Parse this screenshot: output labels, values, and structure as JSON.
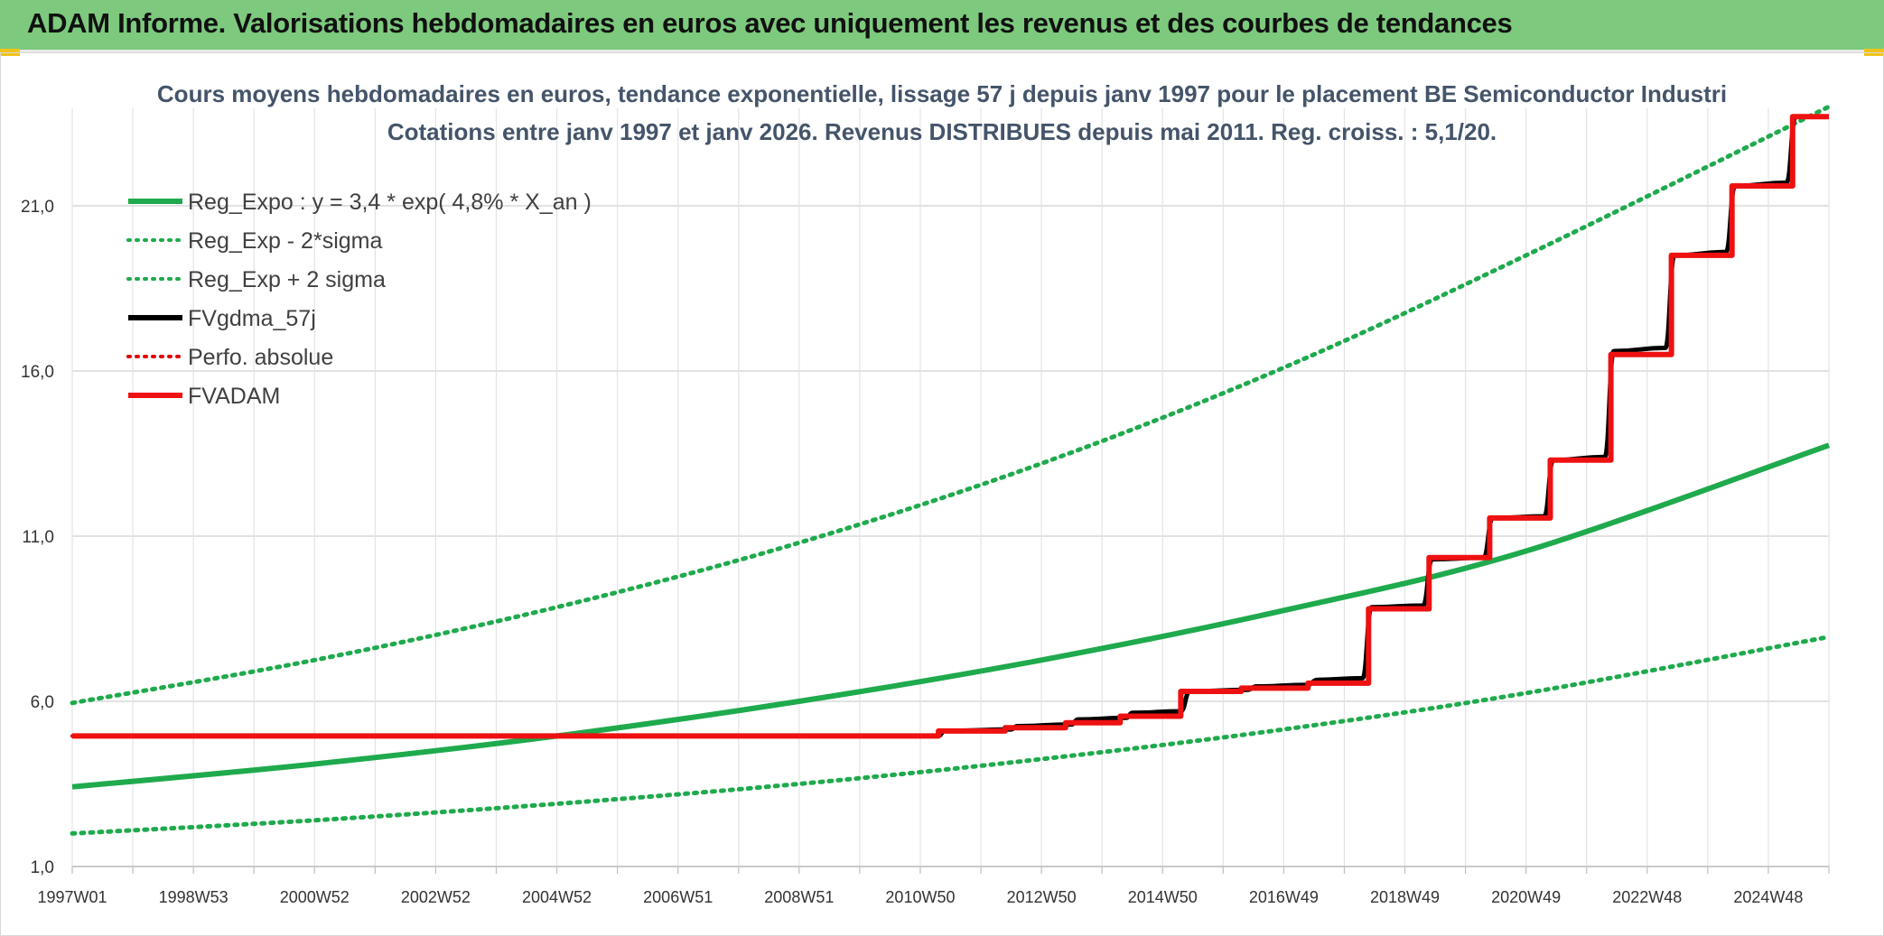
{
  "page": {
    "header_title": "ADAM Informe. Valorisations hebdomadaires en euros avec uniquement les revenus et des courbes de tendances"
  },
  "chart_data": {
    "type": "line",
    "title_line1": "Cours moyens hebdomadaires en euros, tendance exponentielle, lissage 57 j depuis janv 1997 pour le placement BE Semiconductor Industri",
    "title_line2": "Cotations entre janv 1997 et janv 2026. Revenus DISTRIBUES depuis mai 2011. Reg. croiss. : 5,1/20.",
    "x_range": [
      1997.0,
      2026.0
    ],
    "ylim": [
      1.0,
      24.0
    ],
    "y_ticks": [
      {
        "value": 1.0,
        "label": "1,0"
      },
      {
        "value": 6.0,
        "label": "6,0"
      },
      {
        "value": 11.0,
        "label": "11,0"
      },
      {
        "value": 16.0,
        "label": "16,0"
      },
      {
        "value": 21.0,
        "label": "21,0"
      }
    ],
    "x_ticks": [
      {
        "value": 1997.0,
        "label": "1997W01"
      },
      {
        "value": 1999.0,
        "label": "1998W53"
      },
      {
        "value": 2001.0,
        "label": "2000W52"
      },
      {
        "value": 2003.0,
        "label": "2002W52"
      },
      {
        "value": 2005.0,
        "label": "2004W52"
      },
      {
        "value": 2007.0,
        "label": "2006W51"
      },
      {
        "value": 2009.0,
        "label": "2008W51"
      },
      {
        "value": 2011.0,
        "label": "2010W50"
      },
      {
        "value": 2013.0,
        "label": "2012W50"
      },
      {
        "value": 2015.0,
        "label": "2014W50"
      },
      {
        "value": 2017.0,
        "label": "2016W49"
      },
      {
        "value": 2019.0,
        "label": "2018W49"
      },
      {
        "value": 2021.0,
        "label": "2020W49"
      },
      {
        "value": 2023.0,
        "label": "2022W48"
      },
      {
        "value": 2025.0,
        "label": "2024W48"
      }
    ],
    "minor_ticks_per_label": 2,
    "grid": true,
    "legend_position": "top-left",
    "series": [
      {
        "name": "Reg_Expo : y = 3,4 * exp( 4,8% *  X_an )",
        "color": "#1faa4d",
        "style": "solid",
        "width": 6,
        "points": [
          [
            1997.0,
            3.41
          ],
          [
            2001.0,
            4.1
          ],
          [
            2005.0,
            4.95
          ],
          [
            2009.0,
            6.0
          ],
          [
            2013.0,
            7.25
          ],
          [
            2017.0,
            8.75
          ],
          [
            2021.0,
            10.55
          ],
          [
            2026.0,
            13.75
          ]
        ]
      },
      {
        "name": "Reg_Exp - 2*sigma",
        "color": "#1faa4d",
        "style": "dotted",
        "width": 5,
        "points": [
          [
            1997.0,
            2.0
          ],
          [
            2001.0,
            2.4
          ],
          [
            2005.0,
            2.9
          ],
          [
            2009.0,
            3.5
          ],
          [
            2013.0,
            4.25
          ],
          [
            2017.0,
            5.15
          ],
          [
            2021.0,
            6.25
          ],
          [
            2026.0,
            7.95
          ]
        ]
      },
      {
        "name": "Reg_Exp + 2 sigma",
        "color": "#1faa4d",
        "style": "dotted",
        "width": 5,
        "points": [
          [
            1997.0,
            5.95
          ],
          [
            2001.0,
            7.25
          ],
          [
            2005.0,
            8.85
          ],
          [
            2009.0,
            10.8
          ],
          [
            2013.0,
            13.2
          ],
          [
            2017.0,
            16.1
          ],
          [
            2021.0,
            19.5
          ],
          [
            2026.0,
            24.0
          ]
        ]
      },
      {
        "name": "FVgdma_57j",
        "color": "#000000",
        "style": "smooth-step",
        "width": 5,
        "points": [
          [
            1997.0,
            4.95
          ],
          [
            2011.3,
            4.95
          ],
          [
            2011.4,
            5.1
          ],
          [
            2012.5,
            5.15
          ],
          [
            2012.6,
            5.25
          ],
          [
            2013.5,
            5.3
          ],
          [
            2013.6,
            5.45
          ],
          [
            2014.4,
            5.5
          ],
          [
            2014.5,
            5.65
          ],
          [
            2015.3,
            5.7
          ],
          [
            2015.45,
            6.3
          ],
          [
            2016.4,
            6.35
          ],
          [
            2016.55,
            6.45
          ],
          [
            2017.4,
            6.5
          ],
          [
            2017.55,
            6.65
          ],
          [
            2018.3,
            6.7
          ],
          [
            2018.45,
            8.85
          ],
          [
            2019.3,
            8.9
          ],
          [
            2019.45,
            10.3
          ],
          [
            2020.3,
            10.35
          ],
          [
            2020.45,
            11.55
          ],
          [
            2021.3,
            11.6
          ],
          [
            2021.45,
            13.3
          ],
          [
            2022.3,
            13.4
          ],
          [
            2022.45,
            16.6
          ],
          [
            2023.3,
            16.7
          ],
          [
            2023.45,
            19.5
          ],
          [
            2024.3,
            19.6
          ],
          [
            2024.45,
            21.6
          ],
          [
            2025.3,
            21.7
          ],
          [
            2025.45,
            23.7
          ],
          [
            2026.0,
            23.7
          ]
        ]
      },
      {
        "name": "Perfo. absolue",
        "color": "#e00000",
        "style": "dotted",
        "width": 4,
        "points": [
          [
            1997.0,
            4.95
          ],
          [
            2011.3,
            4.95
          ]
        ]
      },
      {
        "name": "FVADAM",
        "color": "#ee1111",
        "style": "step",
        "width": 6,
        "points": [
          [
            1997.0,
            4.95
          ],
          [
            2011.3,
            4.95
          ],
          [
            2011.3,
            5.1
          ],
          [
            2012.4,
            5.1
          ],
          [
            2012.4,
            5.2
          ],
          [
            2013.4,
            5.2
          ],
          [
            2013.4,
            5.35
          ],
          [
            2014.3,
            5.35
          ],
          [
            2014.3,
            5.55
          ],
          [
            2015.3,
            5.55
          ],
          [
            2015.3,
            6.3
          ],
          [
            2016.3,
            6.3
          ],
          [
            2016.3,
            6.4
          ],
          [
            2017.4,
            6.4
          ],
          [
            2017.4,
            6.55
          ],
          [
            2018.4,
            6.55
          ],
          [
            2018.4,
            8.8
          ],
          [
            2019.4,
            8.8
          ],
          [
            2019.4,
            10.35
          ],
          [
            2020.4,
            10.35
          ],
          [
            2020.4,
            11.55
          ],
          [
            2021.4,
            11.55
          ],
          [
            2021.4,
            13.3
          ],
          [
            2022.4,
            13.3
          ],
          [
            2022.4,
            16.5
          ],
          [
            2023.4,
            16.5
          ],
          [
            2023.4,
            19.5
          ],
          [
            2024.4,
            19.5
          ],
          [
            2024.4,
            21.6
          ],
          [
            2025.4,
            21.6
          ],
          [
            2025.4,
            23.7
          ],
          [
            2026.0,
            23.7
          ]
        ]
      }
    ]
  }
}
